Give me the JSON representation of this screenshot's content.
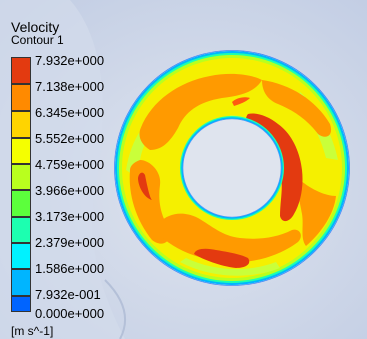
{
  "chart_data": {
    "type": "heatmap",
    "title": "Velocity",
    "subtitle": "Contour 1",
    "unit": "[m s^-1]",
    "legend_placement": "left",
    "legend_levels": [
      {
        "label": "7.932e+000",
        "value": 7.932,
        "color": "#e33a10"
      },
      {
        "label": "7.138e+000",
        "value": 7.138,
        "color": "#ff8a00"
      },
      {
        "label": "6.345e+000",
        "value": 6.345,
        "color": "#ffd400"
      },
      {
        "label": "5.552e+000",
        "value": 5.552,
        "color": "#f5ff00"
      },
      {
        "label": "4.759e+000",
        "value": 4.759,
        "color": "#b9ff1e"
      },
      {
        "label": "3.966e+000",
        "value": 3.966,
        "color": "#5cff3c"
      },
      {
        "label": "3.173e+000",
        "value": 3.173,
        "color": "#1cffb0"
      },
      {
        "label": "2.379e+000",
        "value": 2.379,
        "color": "#00f2ff"
      },
      {
        "label": "1.586e+000",
        "value": 1.586,
        "color": "#00b5ff"
      },
      {
        "label": "7.932e-001",
        "value": 0.7932,
        "color": "#0064ff"
      },
      {
        "label": "0.000e+000",
        "value": 0.0,
        "color": "#0000ff"
      }
    ]
  },
  "colors": {
    "background": "#c9d3e6",
    "annulus_bulk": "#f5f000",
    "high_zone": "#ff8a00",
    "peak_zone": "#e33a10",
    "wall_low": "#00b5ff"
  }
}
